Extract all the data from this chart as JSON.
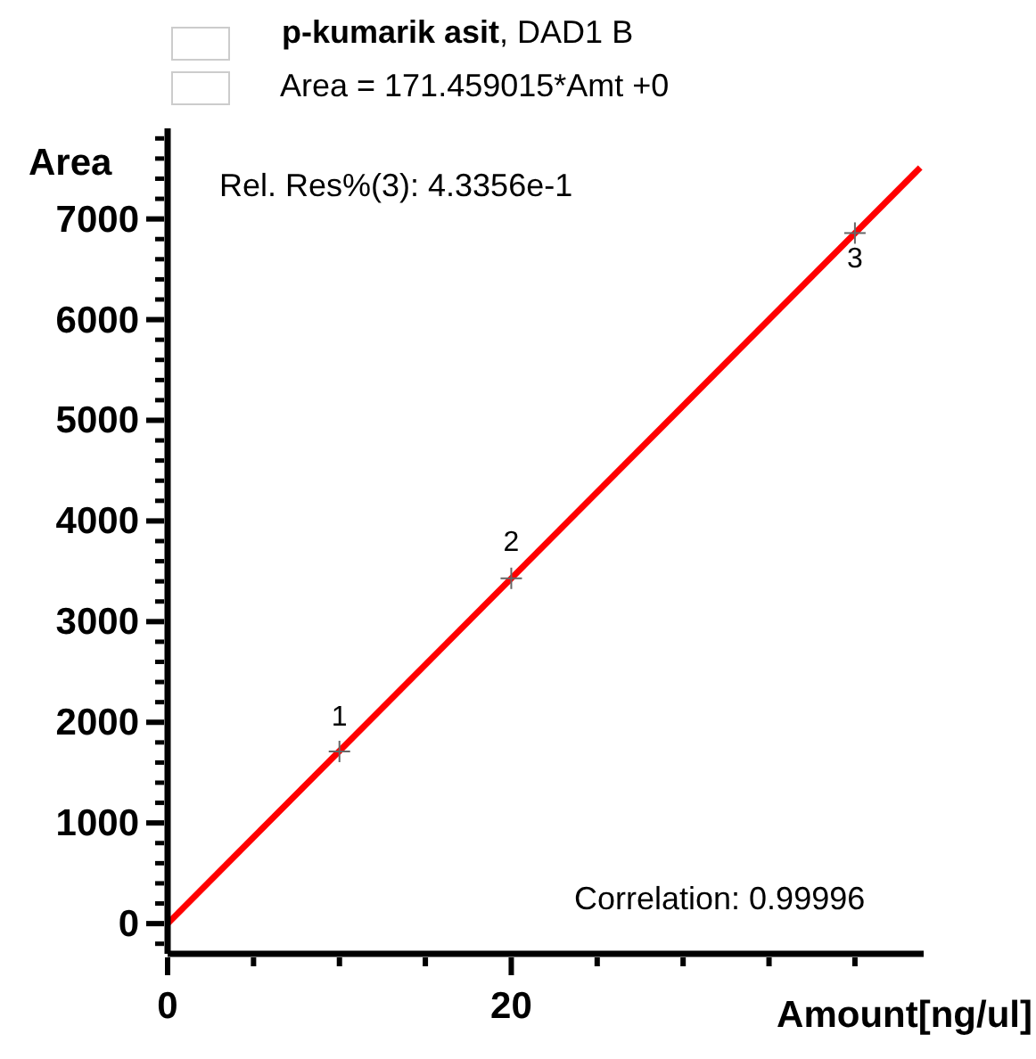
{
  "chart_data": {
    "type": "scatter",
    "title": "p-kumarik asit, DAD1 B",
    "subtitle": "Area = 171.459015*Amt +0",
    "xlabel": "Amount[ng/ul]",
    "ylabel": "Area",
    "annotations": [
      "Rel. Res%(3): 4.3356e-1",
      "Correlation: 0.99996",
      {
        "text": "1",
        "x": 10,
        "y": 1710
      },
      {
        "text": "2",
        "x": 20,
        "y": 3430
      },
      {
        "text": "3",
        "x": 40,
        "y": 6860
      }
    ],
    "xlim": [
      0,
      44
    ],
    "xticks": [
      0,
      {
        "value": 5,
        "label": null
      },
      {
        "value": 10,
        "label": null
      },
      {
        "value": 15,
        "label": null
      },
      20,
      {
        "value": 25,
        "label": null
      },
      {
        "value": 30,
        "label": null
      },
      {
        "value": 35,
        "label": null
      },
      {
        "value": 40,
        "label": null
      }
    ],
    "ylim": [
      -300,
      7900
    ],
    "yticks": [
      {
        "value": -200,
        "label": null
      },
      0,
      {
        "value": 200,
        "label": null
      },
      {
        "value": 400,
        "label": null
      },
      {
        "value": 600,
        "label": null
      },
      {
        "value": 800,
        "label": null
      },
      1000,
      {
        "value": 1200,
        "label": null
      },
      {
        "value": 1400,
        "label": null
      },
      {
        "value": 1600,
        "label": null
      },
      {
        "value": 1800,
        "label": null
      },
      2000,
      {
        "value": 2200,
        "label": null
      },
      {
        "value": 2400,
        "label": null
      },
      {
        "value": 2600,
        "label": null
      },
      {
        "value": 2800,
        "label": null
      },
      3000,
      {
        "value": 3200,
        "label": null
      },
      {
        "value": 3400,
        "label": null
      },
      {
        "value": 3600,
        "label": null
      },
      {
        "value": 3800,
        "label": null
      },
      4000,
      {
        "value": 4200,
        "label": null
      },
      {
        "value": 4400,
        "label": null
      },
      {
        "value": 4600,
        "label": null
      },
      {
        "value": 4800,
        "label": null
      },
      5000,
      {
        "value": 5200,
        "label": null
      },
      {
        "value": 5400,
        "label": null
      },
      {
        "value": 5600,
        "label": null
      },
      {
        "value": 5800,
        "label": null
      },
      6000,
      {
        "value": 6200,
        "label": null
      },
      {
        "value": 6400,
        "label": null
      },
      {
        "value": 6600,
        "label": null
      },
      {
        "value": 6800,
        "label": null
      },
      7000,
      {
        "value": 7200,
        "label": null
      },
      {
        "value": 7400,
        "label": null
      },
      {
        "value": 7600,
        "label": null
      },
      {
        "value": 7800,
        "label": null
      }
    ],
    "grid": false,
    "series": [
      {
        "type": "line",
        "color": "#ff0000",
        "x": [
          0,
          43.8
        ],
        "values": [
          0,
          7510
        ],
        "marker": "none",
        "line_style": "solid"
      },
      {
        "color": "#666666",
        "x": [
          10,
          20,
          40
        ],
        "values": [
          1710,
          3430,
          6860
        ],
        "marker": "cross"
      }
    ]
  }
}
